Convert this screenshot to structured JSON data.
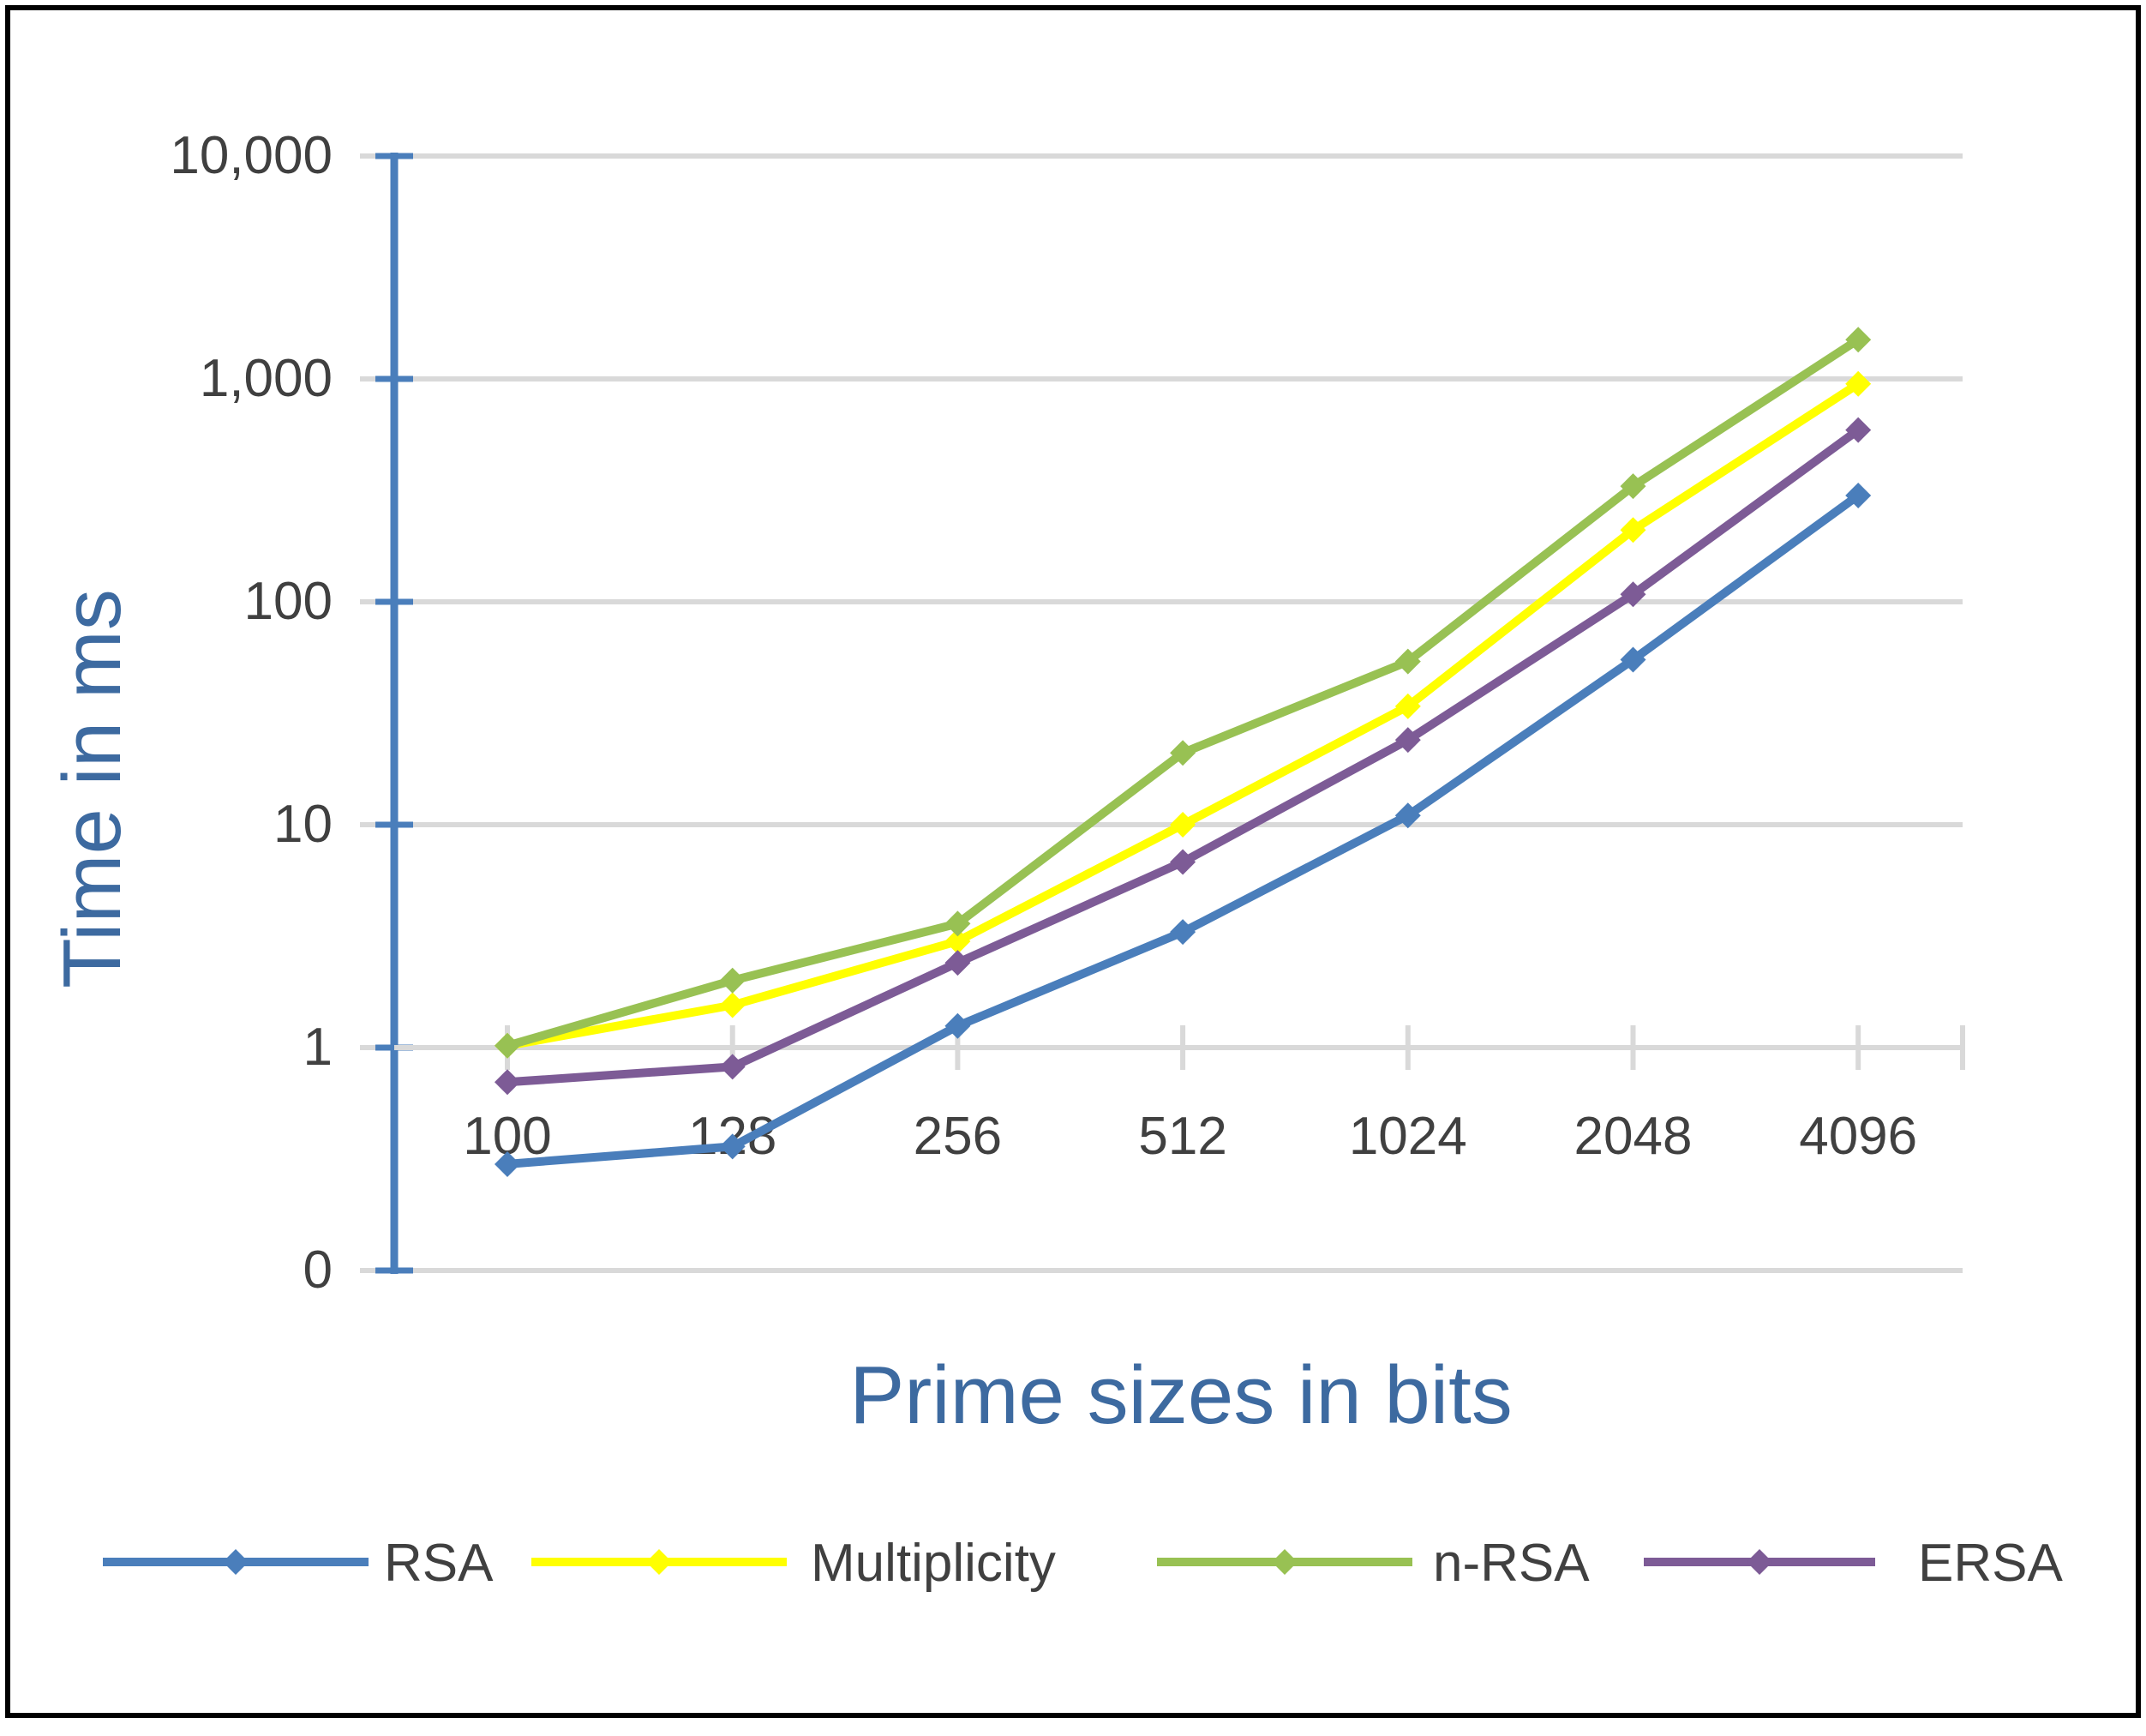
{
  "chart_data": {
    "type": "line",
    "title": "",
    "xlabel": "Prime sizes in bits",
    "ylabel": "Time in ms",
    "y_scale": "log",
    "ylim": [
      0.1,
      10000
    ],
    "y_ticks": [
      {
        "value": 0.1,
        "label": "0"
      },
      {
        "value": 1,
        "label": "1"
      },
      {
        "value": 10,
        "label": "10"
      },
      {
        "value": 100,
        "label": "100"
      },
      {
        "value": 1000,
        "label": "1,000"
      },
      {
        "value": 10000,
        "label": "10,000"
      }
    ],
    "categories": [
      "100",
      "128",
      "256",
      "512",
      "1024",
      "2048",
      "4096"
    ],
    "grid": true,
    "legend_position": "bottom",
    "series": [
      {
        "name": "RSA",
        "color": "#4a7ebb",
        "values": [
          0.3,
          0.36,
          1.25,
          3.3,
          11,
          55,
          300
        ]
      },
      {
        "name": "Multiplicity",
        "color": "#ffff00",
        "values": [
          1.02,
          1.55,
          3,
          10,
          34,
          210,
          950
        ]
      },
      {
        "name": "n-RSA",
        "color": "#98c153",
        "values": [
          1.02,
          2,
          3.6,
          21,
          54,
          330,
          1500
        ]
      },
      {
        "name": "ERSA",
        "color": "#7d5b96",
        "values": [
          0.7,
          0.82,
          2.4,
          6.8,
          24,
          108,
          590
        ]
      }
    ],
    "axis_color": "#4a7ebb",
    "grid_color": "#d9d9d9"
  }
}
